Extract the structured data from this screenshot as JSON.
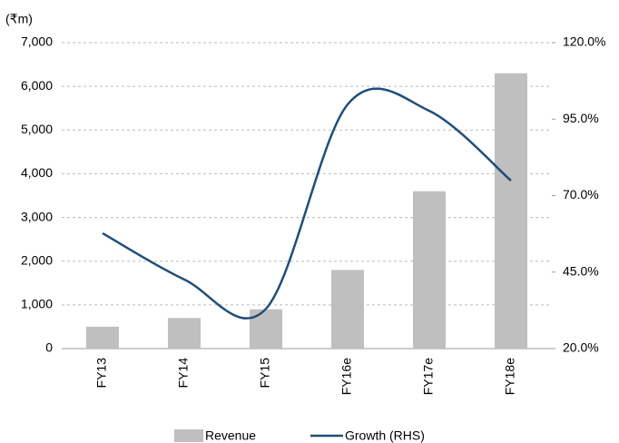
{
  "chart_data": {
    "type": "bar-line",
    "y_label": "(₹m)",
    "categories": [
      "FY13",
      "FY14",
      "FY15",
      "FY16e",
      "FY17e",
      "FY18e"
    ],
    "series": [
      {
        "name": "Revenue",
        "color": "#bfbfbf",
        "type": "bar",
        "values": [
          500,
          700,
          900,
          1800,
          3600,
          6300
        ]
      },
      {
        "name": "Growth (RHS)",
        "color": "#1f4e79",
        "type": "line",
        "axis": "y2",
        "values": [
          57.7,
          42.6,
          33,
          99.8,
          97.7,
          74.9
        ]
      }
    ],
    "ylim": [
      0,
      7000
    ],
    "yticks": [
      0,
      {
        "value": 1000,
        "label": "1,000"
      },
      {
        "value": 2000,
        "label": "2,000"
      },
      {
        "value": 3000,
        "label": "3,000"
      },
      {
        "value": 4000,
        "label": "4,000"
      },
      {
        "value": 5000,
        "label": "5,000"
      },
      {
        "value": 6000,
        "label": "6,000"
      },
      {
        "value": 7000,
        "label": "7,000"
      }
    ],
    "y2lim": [
      20,
      120
    ],
    "y2ticks": [
      {
        "value": 20,
        "label": "20.0%"
      },
      {
        "value": 45,
        "label": "45.0%"
      },
      {
        "value": 70,
        "label": "70.0%"
      },
      {
        "value": 95,
        "label": "95.0%"
      },
      {
        "value": 120,
        "label": "120.0%"
      }
    ],
    "grid": true
  }
}
